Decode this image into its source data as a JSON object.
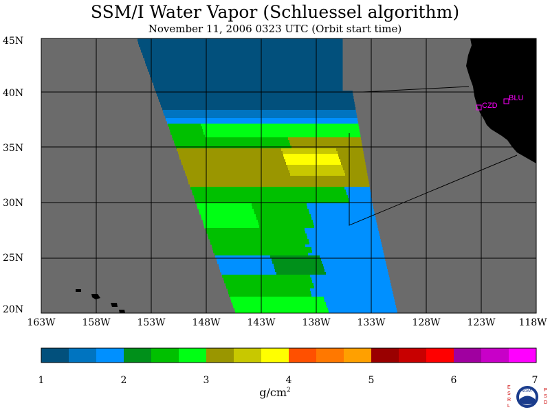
{
  "title": "SSM/I Water Vapor (Schluessel algorithm)",
  "subtitle": "November 11, 2006  0323 UTC  (Orbit start time)",
  "map": {
    "lat_labels": [
      "45N",
      "40N",
      "35N",
      "30N",
      "25N",
      "20N"
    ],
    "lon_labels": [
      "163W",
      "158W",
      "153W",
      "148W",
      "143W",
      "138W",
      "133W",
      "128W",
      "123W",
      "118W"
    ],
    "stations": [
      "CZD",
      "BLU"
    ],
    "colors": {
      "no_data": "#6b6b6b",
      "land": "#000000",
      "grid": "#000000",
      "station": "#ff00ff"
    }
  },
  "colorbar": {
    "ticks": [
      "1",
      "2",
      "3",
      "4",
      "5",
      "6",
      "7"
    ],
    "unit_base": "g/cm",
    "unit_exp": "2",
    "colors": [
      "#02507c",
      "#0074c0",
      "#0090ff",
      "#00901a",
      "#00c000",
      "#00ff14",
      "#9a9600",
      "#c8c800",
      "#ffff00",
      "#ff5000",
      "#ff7800",
      "#ffa000",
      "#9a0000",
      "#c80000",
      "#ff0000",
      "#a000a0",
      "#c800c8",
      "#ff00ff"
    ]
  },
  "logo": {
    "left_text": "ESRL",
    "right_text": "PSD",
    "center_text": "NOAA"
  }
}
